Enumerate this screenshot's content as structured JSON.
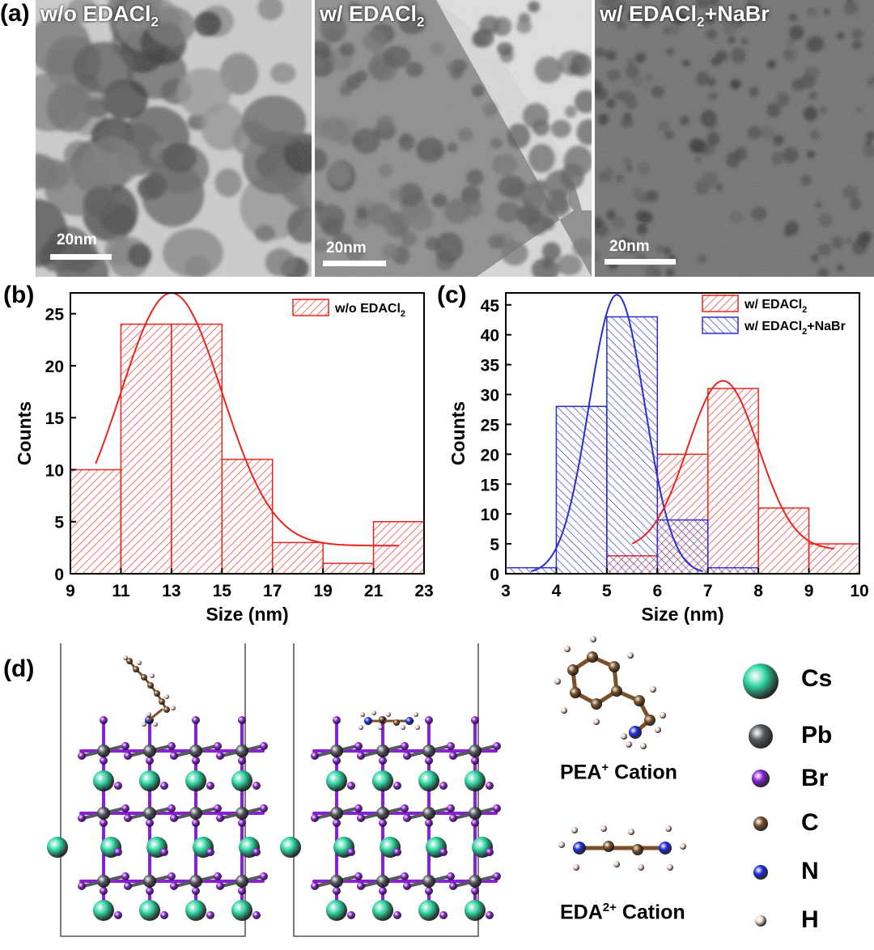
{
  "panel_labels": {
    "a": "(a)",
    "b": "(b)",
    "c": "(c)",
    "d": "(d)"
  },
  "tem": [
    {
      "title_prefix": "w/o EDACl",
      "title_sub": "2",
      "title_suffix": "",
      "scale": "20nm"
    },
    {
      "title_prefix": "w/ EDACl",
      "title_sub": "2",
      "title_suffix": "",
      "scale": "20nm"
    },
    {
      "title_prefix": "w/ EDACl",
      "title_sub": "2",
      "title_suffix": "+NaBr",
      "scale": "20nm"
    }
  ],
  "chart_data": [
    {
      "type": "bar",
      "panel": "(b)",
      "xlabel": "Size (nm)",
      "ylabel": "Counts",
      "xlim": [
        9,
        23
      ],
      "ylim": [
        0,
        27
      ],
      "xticks": [
        9,
        11,
        13,
        15,
        17,
        19,
        21,
        23
      ],
      "yticks": [
        0,
        5,
        10,
        15,
        20,
        25
      ],
      "series": [
        {
          "name": "w/o EDACl2",
          "legend_prefix": "w/o EDACl",
          "legend_sub": "2",
          "legend_suffix": "",
          "color": "#e8261f",
          "bins": [
            [
              9,
              11
            ],
            [
              11,
              13
            ],
            [
              13,
              15
            ],
            [
              15,
              17
            ],
            [
              17,
              19
            ],
            [
              19,
              21
            ],
            [
              21,
              23
            ]
          ],
          "values": [
            10,
            24,
            24,
            11,
            3,
            1,
            5
          ]
        }
      ],
      "fits": [
        {
          "color": "#e8261f",
          "center": 13,
          "amplitude": 24.3,
          "sigma": 2.0,
          "baseline": 2.7,
          "xrange": [
            10,
            22
          ]
        }
      ]
    },
    {
      "type": "bar",
      "panel": "(c)",
      "xlabel": "Size (nm)",
      "ylabel": "Counts",
      "xlim": [
        3,
        10
      ],
      "ylim": [
        0,
        47
      ],
      "xticks": [
        3,
        4,
        5,
        6,
        7,
        8,
        9,
        10
      ],
      "yticks": [
        0,
        5,
        10,
        15,
        20,
        25,
        30,
        35,
        40,
        45
      ],
      "series": [
        {
          "name": "w/ EDACl2",
          "legend_prefix": "w/ EDACl",
          "legend_sub": "2",
          "legend_suffix": "",
          "color": "#e8261f",
          "bins": [
            [
              5,
              6
            ],
            [
              6,
              7
            ],
            [
              7,
              8
            ],
            [
              8,
              9
            ],
            [
              9,
              10
            ]
          ],
          "values": [
            3,
            20,
            31,
            11,
            5
          ]
        },
        {
          "name": "w/ EDACl2+NaBr",
          "legend_prefix": "w/ EDACl",
          "legend_sub": "2",
          "legend_suffix": "+NaBr",
          "color": "#2b2ecf",
          "bins": [
            [
              3,
              4
            ],
            [
              4,
              5
            ],
            [
              5,
              6
            ],
            [
              6,
              7
            ],
            [
              7,
              8
            ]
          ],
          "values": [
            1,
            28,
            43,
            9,
            1
          ]
        }
      ],
      "fits": [
        {
          "color": "#2b2ecf",
          "center": 5.2,
          "amplitude": 46.7,
          "sigma": 0.55,
          "baseline": 0,
          "xrange": [
            3.5,
            6.9
          ]
        },
        {
          "color": "#e8261f",
          "center": 7.3,
          "amplitude": 28.3,
          "sigma": 0.7,
          "baseline": 4,
          "xrange": [
            5.5,
            9.5
          ]
        }
      ]
    }
  ],
  "structures": {
    "atoms": [
      {
        "name": "Cs",
        "color": "#2fd6a2"
      },
      {
        "name": "Pb",
        "color": "#555a5e"
      },
      {
        "name": "Br",
        "color": "#8a1fd6"
      },
      {
        "name": "C",
        "color": "#7a4f2a"
      },
      {
        "name": "N",
        "color": "#1a2be0"
      },
      {
        "name": "H",
        "color": "#f2d6cf"
      }
    ],
    "cations": [
      {
        "label_prefix": "PEA",
        "label_sup": "+",
        "label_suffix": " Cation"
      },
      {
        "label_prefix": "EDA",
        "label_sup": "2+",
        "label_suffix": " Cation"
      }
    ]
  }
}
